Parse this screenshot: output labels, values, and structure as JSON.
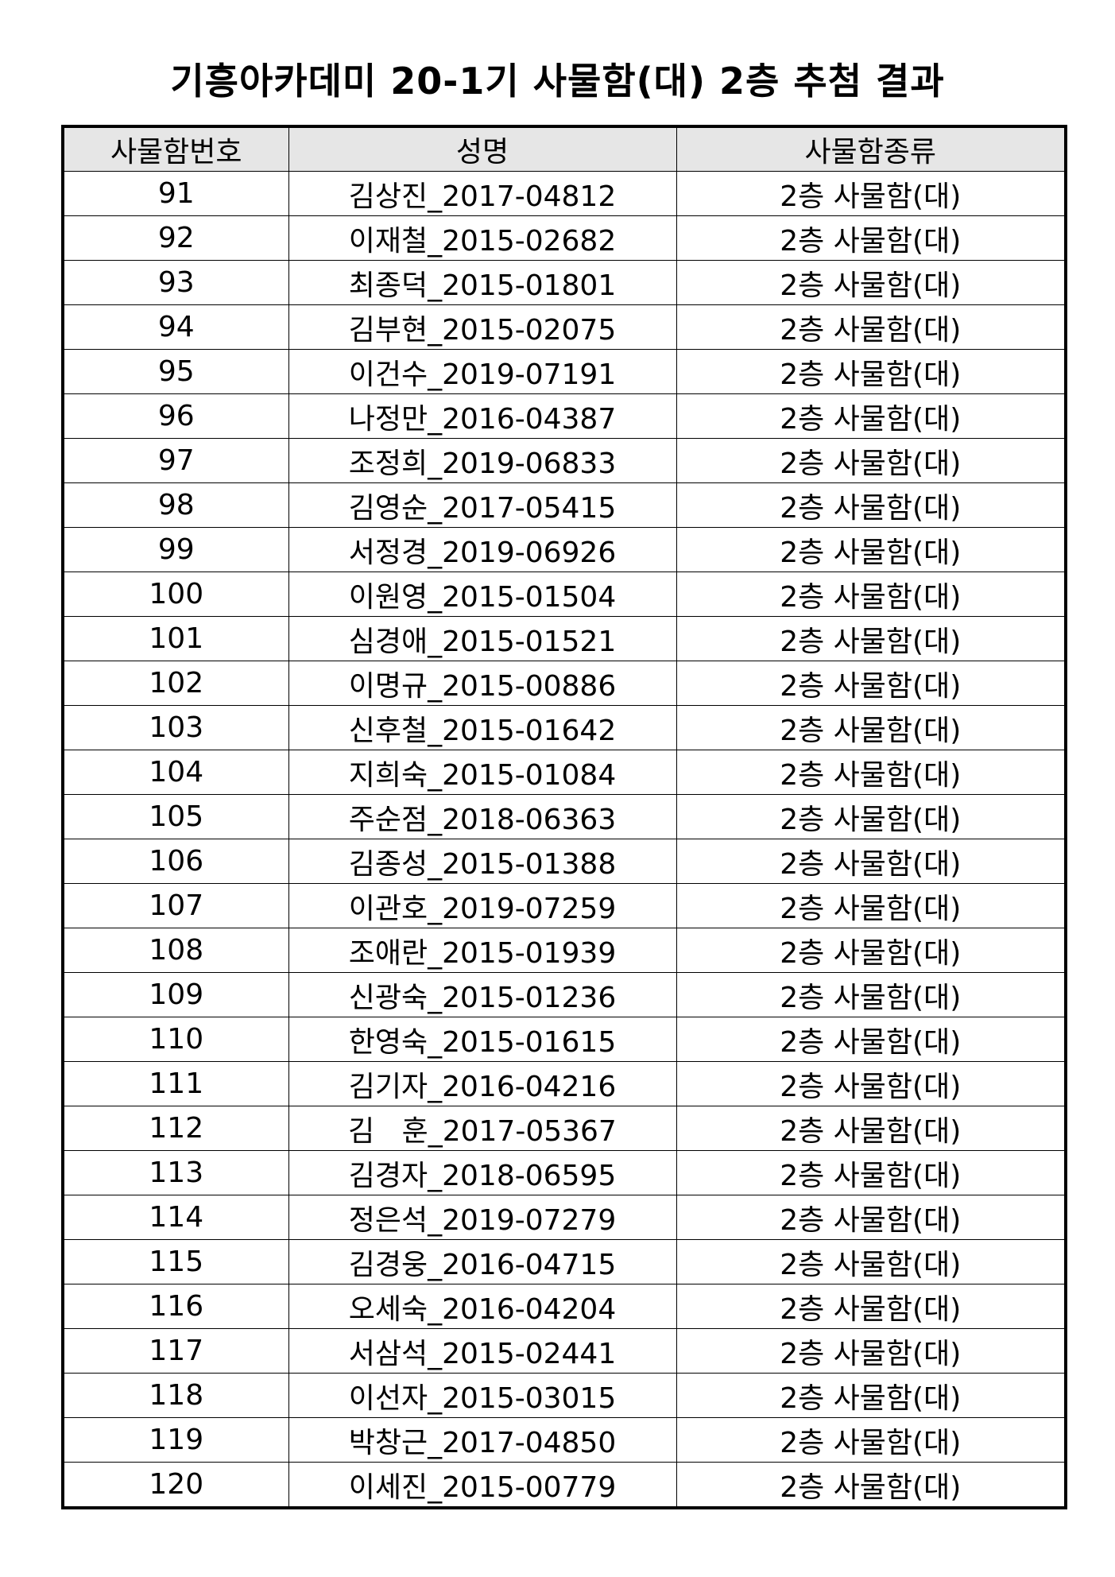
{
  "title": "기흥아카데미 20-1기 사물함(대) 2층 추첨 결과",
  "table": {
    "headers": [
      "사물함번호",
      "성명",
      "사물함종류"
    ],
    "rows": [
      [
        "91",
        "김상진_2017-04812",
        "2층 사물함(대)"
      ],
      [
        "92",
        "이재철_2015-02682",
        "2층 사물함(대)"
      ],
      [
        "93",
        "최종덕_2015-01801",
        "2층 사물함(대)"
      ],
      [
        "94",
        "김부현_2015-02075",
        "2층 사물함(대)"
      ],
      [
        "95",
        "이건수_2019-07191",
        "2층 사물함(대)"
      ],
      [
        "96",
        "나정만_2016-04387",
        "2층 사물함(대)"
      ],
      [
        "97",
        "조정희_2019-06833",
        "2층 사물함(대)"
      ],
      [
        "98",
        "김영순_2017-05415",
        "2층 사물함(대)"
      ],
      [
        "99",
        "서정경_2019-06926",
        "2층 사물함(대)"
      ],
      [
        "100",
        "이원영_2015-01504",
        "2층 사물함(대)"
      ],
      [
        "101",
        "심경애_2015-01521",
        "2층 사물함(대)"
      ],
      [
        "102",
        "이명규_2015-00886",
        "2층 사물함(대)"
      ],
      [
        "103",
        "신후철_2015-01642",
        "2층 사물함(대)"
      ],
      [
        "104",
        "지희숙_2015-01084",
        "2층 사물함(대)"
      ],
      [
        "105",
        "주순점_2018-06363",
        "2층 사물함(대)"
      ],
      [
        "106",
        "김종성_2015-01388",
        "2층 사물함(대)"
      ],
      [
        "107",
        "이관호_2019-07259",
        "2층 사물함(대)"
      ],
      [
        "108",
        "조애란_2015-01939",
        "2층 사물함(대)"
      ],
      [
        "109",
        "신광숙_2015-01236",
        "2층 사물함(대)"
      ],
      [
        "110",
        "한영숙_2015-01615",
        "2층 사물함(대)"
      ],
      [
        "111",
        "김기자_2016-04216",
        "2층 사물함(대)"
      ],
      [
        "112",
        "김   훈_2017-05367",
        "2층 사물함(대)"
      ],
      [
        "113",
        "김경자_2018-06595",
        "2층 사물함(대)"
      ],
      [
        "114",
        "정은석_2019-07279",
        "2층 사물함(대)"
      ],
      [
        "115",
        "김경웅_2016-04715",
        "2층 사물함(대)"
      ],
      [
        "116",
        "오세숙_2016-04204",
        "2층 사물함(대)"
      ],
      [
        "117",
        "서삼석_2015-02441",
        "2층 사물함(대)"
      ],
      [
        "118",
        "이선자_2015-03015",
        "2층 사물함(대)"
      ],
      [
        "119",
        "박창근_2017-04850",
        "2층 사물함(대)"
      ],
      [
        "120",
        "이세진_2015-00779",
        "2층 사물함(대)"
      ]
    ]
  }
}
